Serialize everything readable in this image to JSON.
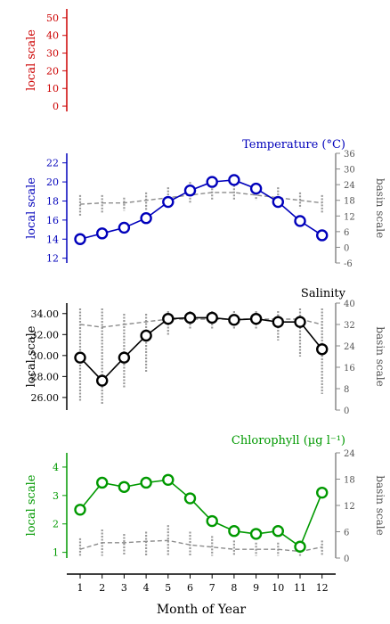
{
  "x_axis": {
    "label": "Month of Year",
    "ticks": [
      1,
      2,
      3,
      4,
      5,
      6,
      7,
      8,
      9,
      10,
      11,
      12
    ]
  },
  "chart_data": [
    {
      "type": "line",
      "title": "",
      "color": "#cc0000",
      "left_label": "local scale",
      "left_ylim": [
        -3,
        55
      ],
      "left_ticks": [
        "50",
        "40",
        "30",
        "20",
        "10",
        "0"
      ],
      "left_tick_values": [
        50,
        40,
        30,
        20,
        10,
        0
      ],
      "series": []
    },
    {
      "type": "line",
      "title": "Temperature (°C)",
      "color": "#0000bb",
      "left_label": "local scale",
      "right_label": "basin scale",
      "left_ylim": [
        11.5,
        23
      ],
      "right_ylim": [
        -6,
        36
      ],
      "left_ticks": [
        "22",
        "20",
        "18",
        "16",
        "14",
        "12"
      ],
      "left_tick_values": [
        22,
        20,
        18,
        16,
        14,
        12
      ],
      "right_ticks": [
        "36",
        "30",
        "24",
        "18",
        "12",
        "6",
        "0",
        "-6"
      ],
      "right_tick_values": [
        36,
        30,
        24,
        18,
        12,
        6,
        0,
        -6
      ],
      "x": [
        1,
        2,
        3,
        4,
        5,
        6,
        7,
        8,
        9,
        10,
        11,
        12
      ],
      "local": [
        14.0,
        14.6,
        15.2,
        16.2,
        17.9,
        19.1,
        20.0,
        20.2,
        19.3,
        17.9,
        15.9,
        14.4
      ],
      "basin_mean": [
        16.5,
        17.0,
        17.0,
        18.0,
        19.0,
        20.0,
        21.0,
        21.0,
        20.0,
        19.0,
        18.0,
        17.0
      ],
      "basin_range": [
        [
          12,
          20
        ],
        [
          13,
          20
        ],
        [
          14,
          19
        ],
        [
          14,
          21
        ],
        [
          16,
          23
        ],
        [
          17,
          25
        ],
        [
          18,
          25
        ],
        [
          18,
          25
        ],
        [
          18,
          24
        ],
        [
          16,
          23
        ],
        [
          15,
          21
        ],
        [
          13,
          20
        ]
      ]
    },
    {
      "type": "line",
      "title": "Salinity",
      "color": "#000000",
      "left_label": "local scale",
      "right_label": "basin scale",
      "left_ylim": [
        24.8,
        35.0
      ],
      "right_ylim": [
        0,
        40
      ],
      "left_ticks": [
        "34.00",
        "32.00",
        "30.00",
        "28.00",
        "26.00"
      ],
      "left_tick_values": [
        34,
        32,
        30,
        28,
        26
      ],
      "right_ticks": [
        "40",
        "32",
        "24",
        "16",
        "8",
        "0"
      ],
      "right_tick_values": [
        40,
        32,
        24,
        16,
        8,
        0
      ],
      "x": [
        1,
        2,
        3,
        4,
        5,
        6,
        7,
        8,
        9,
        10,
        11,
        12
      ],
      "local": [
        29.8,
        27.6,
        29.8,
        31.9,
        33.5,
        33.6,
        33.6,
        33.4,
        33.5,
        33.2,
        33.2,
        30.6
      ],
      "basin_mean": [
        32,
        31,
        32,
        33,
        34,
        34,
        34,
        34,
        34,
        34,
        34,
        32
      ],
      "basin_range": [
        [
          3,
          38
        ],
        [
          2,
          38
        ],
        [
          8,
          36
        ],
        [
          14,
          36
        ],
        [
          28,
          37
        ],
        [
          30,
          37
        ],
        [
          30,
          37
        ],
        [
          30,
          37
        ],
        [
          30,
          37
        ],
        [
          26,
          37
        ],
        [
          20,
          38
        ],
        [
          6,
          38
        ]
      ]
    },
    {
      "type": "line",
      "title": "Chlorophyll (µg l⁻¹)",
      "color": "#009900",
      "left_label": "local scale",
      "right_label": "basin scale",
      "left_ylim": [
        0.8,
        4.5
      ],
      "right_ylim": [
        0,
        24
      ],
      "left_ticks": [
        "4",
        "3",
        "2",
        "1"
      ],
      "left_tick_values": [
        4,
        3,
        2,
        1
      ],
      "right_ticks": [
        "24",
        "18",
        "12",
        "6",
        "0"
      ],
      "right_tick_values": [
        24,
        18,
        12,
        6,
        0
      ],
      "x": [
        1,
        2,
        3,
        4,
        5,
        6,
        7,
        8,
        9,
        10,
        11,
        12
      ],
      "local": [
        2.5,
        3.45,
        3.3,
        3.45,
        3.55,
        2.9,
        2.1,
        1.75,
        1.65,
        1.75,
        1.2,
        3.1
      ],
      "basin_mean": [
        2.0,
        3.5,
        3.5,
        3.8,
        4.0,
        3.0,
        2.5,
        2.0,
        2.0,
        2.0,
        1.5,
        2.5
      ],
      "basin_range": [
        [
          0.5,
          4.5
        ],
        [
          0.5,
          6.5
        ],
        [
          0.5,
          5.5
        ],
        [
          0.5,
          6
        ],
        [
          0.5,
          7.5
        ],
        [
          0.5,
          6
        ],
        [
          0.5,
          5
        ],
        [
          0.5,
          4
        ],
        [
          0.5,
          3.5
        ],
        [
          0.5,
          3.5
        ],
        [
          0.5,
          3
        ],
        [
          0.5,
          4
        ]
      ]
    }
  ]
}
